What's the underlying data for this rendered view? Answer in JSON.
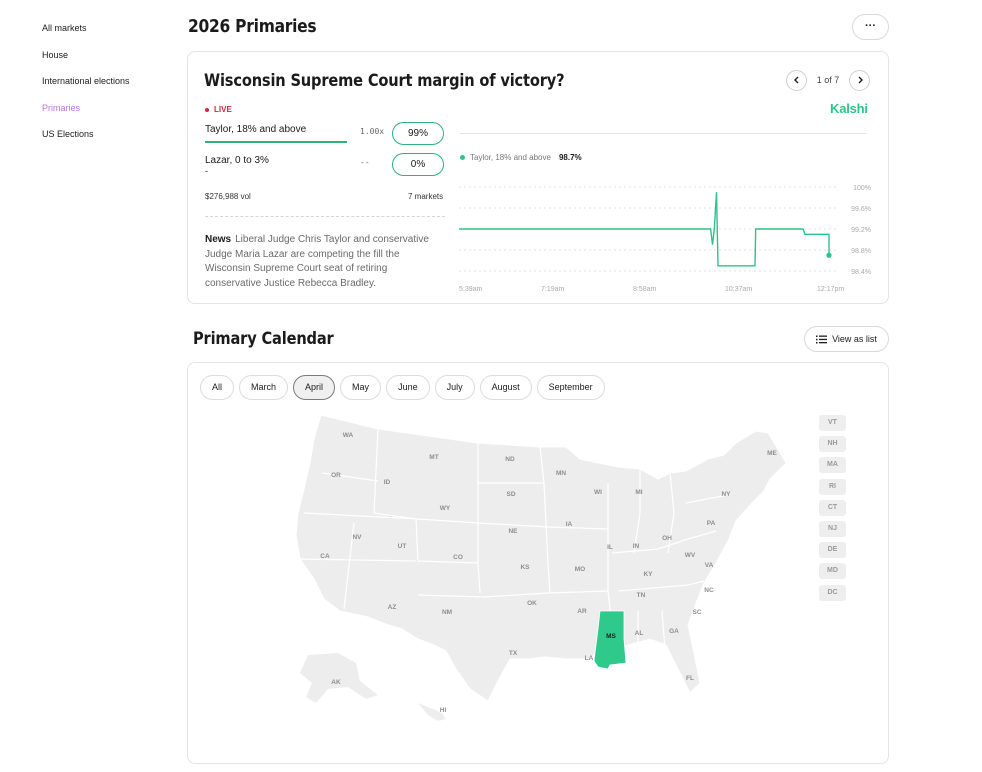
{
  "sidebar": {
    "items": [
      {
        "label": "All markets"
      },
      {
        "label": "House"
      },
      {
        "label": "International elections"
      },
      {
        "label": "Primaries"
      },
      {
        "label": "US Elections"
      }
    ]
  },
  "header": {
    "title": "2026 Primaries",
    "more_label": "···"
  },
  "market": {
    "title": "Wisconsin Supreme Court margin of victory?",
    "pager": "1 of 7",
    "brand": "Kalshi",
    "live": "LIVE",
    "outcomes": [
      {
        "name": "Taylor, 18% and above",
        "mult": "1.00x",
        "pct": "99%"
      },
      {
        "name": "Lazar, 0 to 3%",
        "sub": "-",
        "mult": "--",
        "pct": "0%"
      }
    ],
    "volume": "$276,988 vol",
    "markets_count": "7 markets",
    "news_label": "News",
    "news_text": "Liberal Judge Chris Taylor and conservative Judge Maria Lazar are competing the fill the Wisconsin Supreme Court seat of retiring conservative Justice Rebecca Bradley.",
    "legend_name": "Taylor, 18% and above",
    "legend_value": "98.7%",
    "accent": "#2bc48a"
  },
  "chart_data": {
    "type": "line",
    "y_ticks": [
      "100%",
      "99.6%",
      "99.2%",
      "98.8%",
      "98.4%"
    ],
    "x_ticks": [
      "5:39am",
      "7:19am",
      "8:58am",
      "10:37am",
      "12:17pm"
    ],
    "ylim": [
      98.4,
      100
    ],
    "series": [
      {
        "name": "Taylor, 18% and above",
        "points": [
          [
            0,
            99.2
          ],
          [
            0.68,
            99.2
          ],
          [
            0.685,
            98.9
          ],
          [
            0.69,
            99.2
          ],
          [
            0.696,
            99.9
          ],
          [
            0.7,
            98.5
          ],
          [
            0.703,
            98.5
          ],
          [
            0.8,
            98.5
          ],
          [
            0.802,
            99.2
          ],
          [
            0.93,
            99.2
          ],
          [
            0.935,
            99.1
          ],
          [
            1.0,
            99.1
          ],
          [
            1.0,
            98.7
          ]
        ]
      }
    ]
  },
  "calendar": {
    "title": "Primary Calendar",
    "view_label": "View as list",
    "months": [
      "All",
      "March",
      "April",
      "May",
      "June",
      "July",
      "August",
      "September"
    ],
    "active_month": "April",
    "small_states": [
      "VT",
      "NH",
      "MA",
      "RI",
      "CT",
      "NJ",
      "DE",
      "MD",
      "DC"
    ],
    "highlighted_state": "MS",
    "highlight_color": "#2fc98b",
    "state_labels": [
      "WA",
      "MT",
      "ND",
      "MN",
      "ME",
      "OR",
      "ID",
      "SD",
      "WI",
      "MI",
      "NY",
      "WY",
      "NE",
      "IA",
      "PA",
      "NV",
      "UT",
      "CO",
      "IL",
      "IN",
      "OH",
      "CA",
      "KS",
      "MO",
      "KY",
      "WV",
      "VA",
      "TN",
      "NC",
      "AZ",
      "NM",
      "OK",
      "AR",
      "MS",
      "AL",
      "GA",
      "SC",
      "TX",
      "LA",
      "FL",
      "AK",
      "HI"
    ]
  }
}
